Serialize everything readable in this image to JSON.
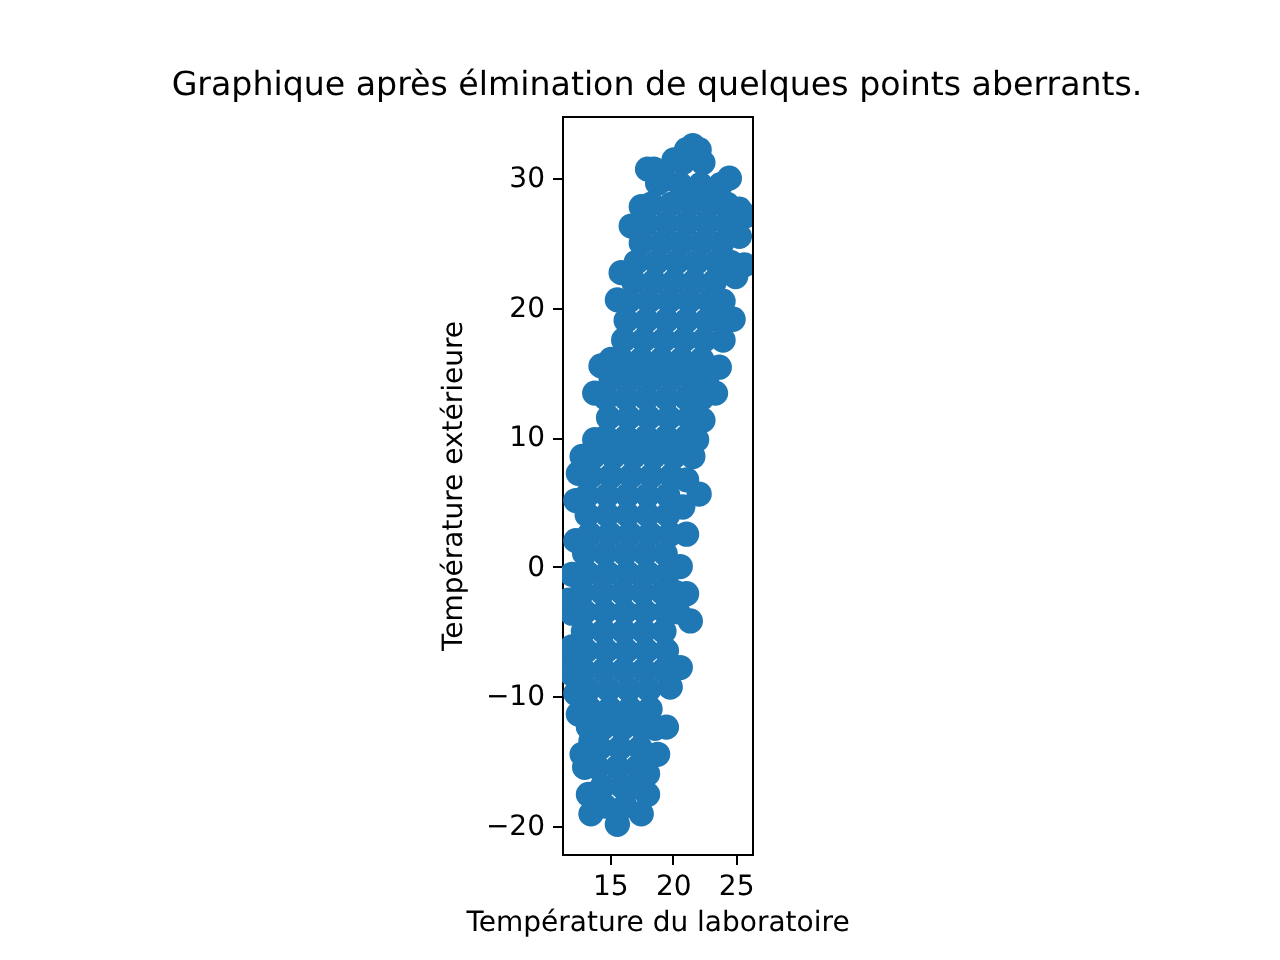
{
  "chart_data": {
    "type": "scatter",
    "title": "Graphique après élmination de quelques points aberrants.",
    "xlabel": "Température du laboratoire",
    "ylabel": "Température extérieure",
    "color": "#1f77b4",
    "marker": "circle",
    "xlim": [
      11.2,
      26.3
    ],
    "ylim": [
      -22.2,
      34.8
    ],
    "xticks": [
      15,
      20,
      25
    ],
    "yticks": [
      -20,
      -10,
      0,
      10,
      20,
      30
    ],
    "x": [
      21.6,
      22.1,
      22.4,
      24.5,
      25.3,
      25.8,
      25.3,
      25.7,
      25.0,
      24.8,
      24.0,
      23.7,
      23.4,
      22.4,
      21.9,
      21.6,
      21.1,
      22.1,
      20.8,
      21.1,
      20.6,
      21.1,
      21.4,
      20.6,
      19.8,
      19.5,
      18.8,
      18.0,
      18.0,
      17.5,
      15.6,
      13.5,
      13.3,
      13.0,
      12.8,
      13.5,
      13.3,
      12.5,
      12.3,
      12.0,
      11.6,
      12.0,
      12.0,
      11.7,
      12.0,
      12.3,
      12.3,
      12.5,
      12.8,
      13.8,
      13.8,
      14.3,
      15.1,
      15.6,
      15.9,
      16.7,
      17.5,
      18.0,
      18.5,
      18.8,
      19.3,
      20.1,
      20.8,
      21.1,
      20.6,
      22.2,
      23.8,
      18.3,
      19.9,
      21.5,
      23.1,
      24.3,
      17.9,
      19.5,
      21.1,
      22.7,
      24.3,
      17.5,
      19.1,
      20.7,
      22.3,
      23.9,
      17.1,
      18.7,
      20.3,
      21.9,
      23.5,
      24.6,
      16.9,
      18.5,
      20.1,
      21.7,
      23.3,
      16.5,
      18.1,
      19.7,
      21.3,
      22.9,
      24.0,
      16.3,
      17.9,
      19.5,
      21.1,
      22.7,
      23.8,
      16.1,
      17.7,
      19.3,
      20.9,
      22.5,
      15.9,
      17.5,
      19.1,
      20.7,
      22.3,
      15.1,
      16.7,
      18.3,
      19.9,
      21.5,
      22.7,
      14.7,
      16.3,
      17.9,
      19.5,
      21.1,
      22.3,
      14.9,
      16.5,
      18.1,
      19.7,
      21.3,
      14.7,
      16.3,
      17.9,
      19.5,
      21.1,
      13.7,
      15.3,
      16.9,
      18.5,
      20.1,
      13.5,
      15.1,
      16.7,
      18.3,
      19.9,
      13.2,
      14.8,
      16.4,
      18.0,
      19.6,
      13.2,
      14.8,
      16.4,
      18.0,
      19.6,
      13.4,
      15.0,
      16.6,
      18.2,
      19.8,
      13.0,
      14.6,
      16.2,
      17.8,
      19.4,
      13.2,
      14.8,
      16.4,
      18.0,
      19.6,
      12.8,
      14.4,
      16.0,
      17.6,
      19.2,
      20.2,
      13.0,
      14.6,
      16.2,
      17.8,
      19.4,
      20.4,
      12.9,
      14.5,
      16.1,
      17.7,
      19.3,
      13.1,
      14.7,
      16.3,
      17.9,
      19.5,
      12.9,
      14.5,
      16.1,
      17.7,
      19.3,
      13.3,
      14.9,
      16.5,
      18.1,
      13.4,
      15.0,
      16.6,
      18.2,
      14.4,
      16.0,
      17.6,
      18.6,
      14.2,
      15.8,
      17.4,
      14.0,
      15.6,
      17.2,
      14.4,
      16.0,
      17.1,
      14.6,
      16.2
    ],
    "values": [
      32.5,
      32.2,
      31.2,
      30.0,
      27.6,
      27.1,
      25.5,
      23.3,
      22.4,
      19.1,
      17.5,
      15.4,
      13.4,
      11.3,
      9.8,
      8.5,
      6.7,
      5.6,
      4.6,
      2.5,
      0.0,
      -2.1,
      -4.2,
      -7.8,
      -9.3,
      -12.4,
      -14.5,
      -16.0,
      -17.6,
      -19.1,
      -19.9,
      -19.1,
      -17.6,
      -15.5,
      -14.5,
      -13.5,
      -12.4,
      -11.4,
      -9.8,
      -8.3,
      -7.5,
      -6.2,
      -3.6,
      -2.6,
      -0.6,
      2.0,
      5.1,
      7.2,
      8.5,
      9.8,
      13.4,
      15.5,
      16.0,
      20.6,
      22.7,
      26.3,
      27.8,
      30.7,
      30.7,
      29.6,
      29.9,
      31.4,
      31.2,
      32.2,
      29.5,
      29.5,
      29.5,
      28,
      28,
      28,
      28,
      28,
      26.5,
      26.5,
      26.5,
      26.5,
      26.5,
      25,
      25,
      25,
      25,
      25,
      23.5,
      23.5,
      23.5,
      23.5,
      23.5,
      23.5,
      22,
      22,
      22,
      22,
      22,
      20.5,
      20.5,
      20.5,
      20.5,
      20.5,
      20.5,
      19,
      19,
      19,
      19,
      19,
      19,
      17.5,
      17.5,
      17.5,
      17.5,
      17.5,
      16,
      16,
      16,
      16,
      16,
      14.5,
      14.5,
      14.5,
      14.5,
      14.5,
      14.5,
      13,
      13,
      13,
      13,
      13,
      13,
      11.5,
      11.5,
      11.5,
      11.5,
      11.5,
      10,
      10,
      10,
      10,
      10,
      8.5,
      8.5,
      8.5,
      8.5,
      8.5,
      7,
      7,
      7,
      7,
      7,
      5.5,
      5.5,
      5.5,
      5.5,
      5.5,
      4,
      4,
      4,
      4,
      4,
      2.5,
      2.5,
      2.5,
      2.5,
      2.5,
      1,
      1,
      1,
      1,
      1,
      -0.5,
      -0.5,
      -0.5,
      -0.5,
      -0.5,
      -2,
      -2,
      -2,
      -2,
      -2,
      -2,
      -3.5,
      -3.5,
      -3.5,
      -3.5,
      -3.5,
      -3.5,
      -5,
      -5,
      -5,
      -5,
      -5,
      -6.5,
      -6.5,
      -6.5,
      -6.5,
      -6.5,
      -8,
      -8,
      -8,
      -8,
      -8,
      -9.5,
      -9.5,
      -9.5,
      -9.5,
      -11,
      -11,
      -11,
      -11,
      -12.5,
      -12.5,
      -12.5,
      -12.5,
      -14,
      -14,
      -14,
      -15.5,
      -15.5,
      -15.5,
      -17,
      -17,
      -17,
      -18.5,
      -18.5
    ]
  }
}
